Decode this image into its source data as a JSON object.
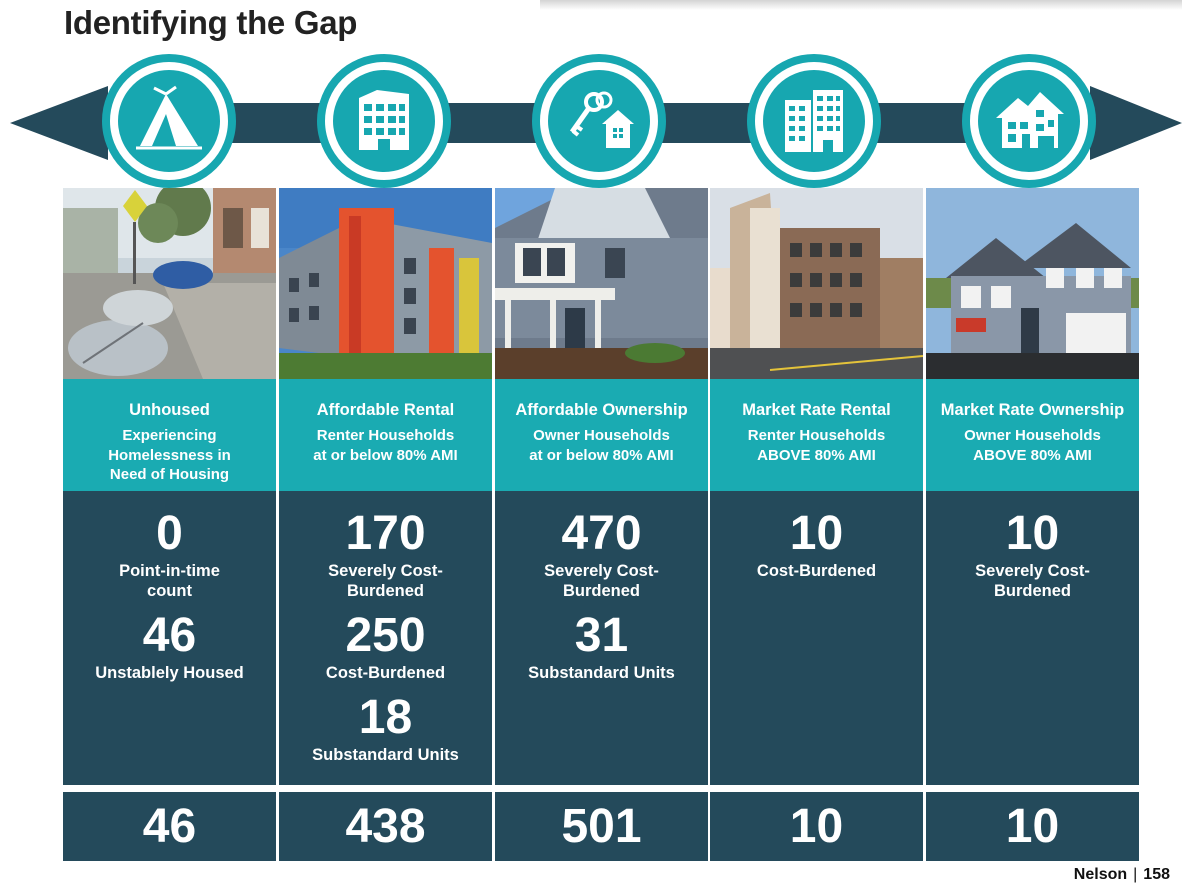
{
  "page": {
    "title": "Identifying the Gap",
    "footer": {
      "name": "Nelson",
      "page_number": "158"
    }
  },
  "colors": {
    "teal": "#1aabb2",
    "navy": "#244a5b",
    "arrow": "#244a5b"
  },
  "columns": [
    {
      "icon": "tent-icon",
      "photo": "tents-on-sidewalk",
      "category": "Unhoused",
      "subtitle": "Experiencing\nHomelessness in\nNeed of Housing",
      "stats": [
        {
          "value": "0",
          "label": "Point-in-time\ncount"
        },
        {
          "value": "46",
          "label": "Unstablely Housed"
        }
      ],
      "total": "46"
    },
    {
      "icon": "apartment-building-icon",
      "photo": "affordable-apartment-building",
      "category": "Affordable Rental",
      "subtitle": "Renter Households\nat or below 80% AMI",
      "stats": [
        {
          "value": "170",
          "label": "Severely Cost-\nBurdened"
        },
        {
          "value": "250",
          "label": "Cost-Burdened"
        },
        {
          "value": "18",
          "label": "Substandard Units"
        }
      ],
      "total": "438"
    },
    {
      "icon": "key-house-icon",
      "photo": "two-story-house",
      "category": "Affordable Ownership",
      "subtitle": "Owner Households\nat or below 80% AMI",
      "stats": [
        {
          "value": "470",
          "label": "Severely Cost-\nBurdened"
        },
        {
          "value": "31",
          "label": "Substandard Units"
        }
      ],
      "total": "501"
    },
    {
      "icon": "highrise-building-icon",
      "photo": "market-rate-apartments",
      "category": "Market Rate Rental",
      "subtitle": "Renter Households\nABOVE 80% AMI",
      "stats": [
        {
          "value": "10",
          "label": "Cost-Burdened"
        }
      ],
      "total": "10"
    },
    {
      "icon": "large-house-icon",
      "photo": "large-single-family-home",
      "category": "Market Rate Ownership",
      "subtitle": "Owner Households\nABOVE 80% AMI",
      "stats": [
        {
          "value": "10",
          "label": "Severely Cost-\nBurdened"
        }
      ],
      "total": "10"
    }
  ]
}
